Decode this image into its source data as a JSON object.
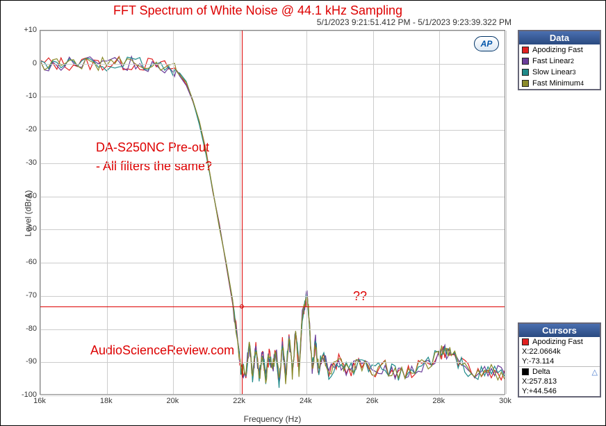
{
  "title": "FFT Spectrum of White Noise @ 44.1 kHz Sampling",
  "timestamp": "5/1/2023 9:21:51.412 PM - 5/1/2023 9:23:39.322 PM",
  "xlabel": "Frequency (Hz)",
  "ylabel": "Level (dBrA)",
  "xlim": [
    16000,
    30000
  ],
  "ylim": [
    -100,
    10
  ],
  "xtick_step": 2000,
  "xticks": [
    "16k",
    "18k",
    "20k",
    "22k",
    "24k",
    "26k",
    "28k",
    "30k"
  ],
  "ytick_step": 10,
  "yticks": [
    "+10",
    "0",
    "-10",
    "-20",
    "-30",
    "-40",
    "-50",
    "-60",
    "-70",
    "-80",
    "-90",
    "-100"
  ],
  "grid_color": "#cccccc",
  "cursor_color": "#dd0000",
  "plot_bg": "#ffffff",
  "ap_logo": "AP",
  "annotation1_line1": "DA-S250NC Pre-out",
  "annotation1_line2": "  - All filters the same?",
  "annotation2": "??",
  "watermark": "AudioScienceReview.com",
  "legend_title": "Data",
  "series": [
    {
      "name": "Apodizing Fast",
      "color": "#e02020"
    },
    {
      "name": "Fast Linear",
      "sub": "2",
      "color": "#6a3d9a"
    },
    {
      "name": "Slow Linear",
      "sub": "3",
      "color": "#1f8a8a"
    },
    {
      "name": "Fast  Minimum",
      "sub": "4",
      "color": "#8a8a2a"
    }
  ],
  "cursors_title": "Cursors",
  "cursor_series_name": "Apodizing Fast",
  "cursor_series_color": "#e02020",
  "cursor_x_label": "X:22.0664k",
  "cursor_y_label": "Y:-73.114",
  "cursor_x": 22066.4,
  "cursor_y": -73.114,
  "delta_label": "Delta",
  "delta_color": "#000000",
  "delta_x": "X:257.813",
  "delta_y": "Y:+44.546",
  "title_color": "#dd0000",
  "title_fontsize": 18,
  "axis_fontsize": 12,
  "tick_fontsize": 11,
  "line_width": 1.2,
  "trace_base": {
    "x": [
      16000,
      16500,
      17000,
      17500,
      18000,
      18500,
      19000,
      19500,
      20000,
      20200,
      20400,
      20600,
      20800,
      21000,
      21200,
      21400,
      21600,
      21800,
      22000,
      22050,
      22200,
      22300,
      22400,
      22500,
      22600,
      22700,
      22800,
      22900,
      23000,
      23100,
      23200,
      23300,
      23400,
      23500,
      23600,
      23700,
      23800,
      23900,
      24000,
      24050,
      24100,
      24200,
      24300,
      24400,
      24500,
      24700,
      25000,
      25300,
      25600,
      26000,
      26400,
      26800,
      27200,
      27600,
      28000,
      28200,
      28400,
      28800,
      29200,
      29600,
      30000
    ],
    "y": [
      0,
      0,
      0,
      0,
      0,
      0,
      0,
      -0.5,
      -1.5,
      -3,
      -6,
      -11,
      -18,
      -27,
      -38,
      -49,
      -60,
      -72,
      -88,
      -92,
      -94,
      -85,
      -95,
      -86,
      -95,
      -87,
      -95,
      -88,
      -93,
      -86,
      -96,
      -85,
      -95,
      -83,
      -94,
      -80,
      -93,
      -76,
      -72,
      -70,
      -76,
      -93,
      -84,
      -94,
      -87,
      -94,
      -90,
      -93,
      -91,
      -93,
      -92,
      -94,
      -93,
      -91,
      -88,
      -87,
      -88,
      -92,
      -94,
      -93,
      -94
    ]
  },
  "jitter_amp": 1.5
}
